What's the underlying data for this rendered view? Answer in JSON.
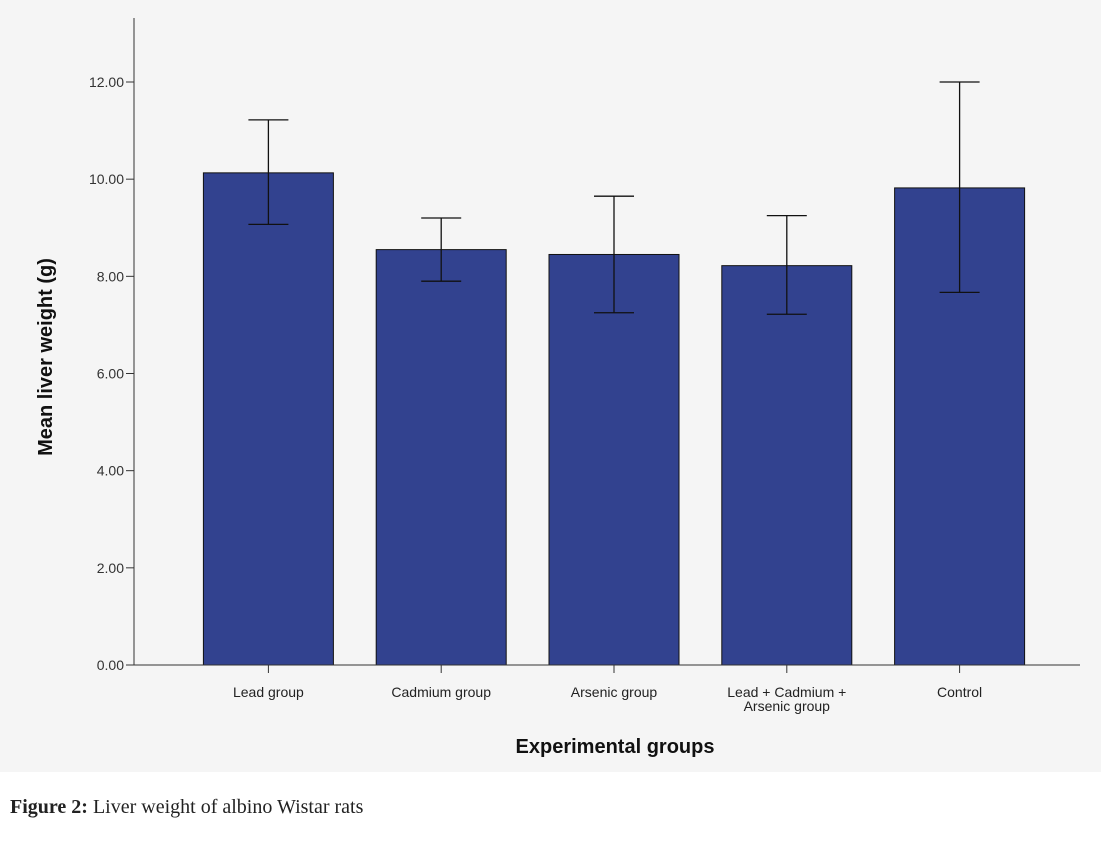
{
  "caption": {
    "label": "Figure 2:",
    "text": " Liver weight of albino Wistar rats"
  },
  "colors": {
    "bar_fill": "#32428f",
    "panel_background": "#f5f5f5",
    "axis": "#333333"
  },
  "chart_data": {
    "type": "bar",
    "title": "",
    "xlabel": "Experimental groups",
    "ylabel": "Mean liver weight (g)",
    "ylim": [
      0,
      13.5
    ],
    "yticks": [
      "0.00",
      "2.00",
      "4.00",
      "6.00",
      "8.00",
      "10.00",
      "12.00"
    ],
    "categories": [
      [
        "Lead group"
      ],
      [
        "Cadmium group"
      ],
      [
        "Arsenic group"
      ],
      [
        "Lead + Cadmium +",
        "Arsenic group"
      ],
      [
        "Control"
      ]
    ],
    "values": [
      10.13,
      8.55,
      8.45,
      8.22,
      9.82
    ],
    "error_bars": {
      "lower": [
        9.07,
        7.9,
        7.25,
        7.22,
        7.67
      ],
      "upper": [
        11.22,
        9.2,
        9.65,
        9.25,
        12.0
      ]
    },
    "grid": false,
    "legend": "none"
  }
}
